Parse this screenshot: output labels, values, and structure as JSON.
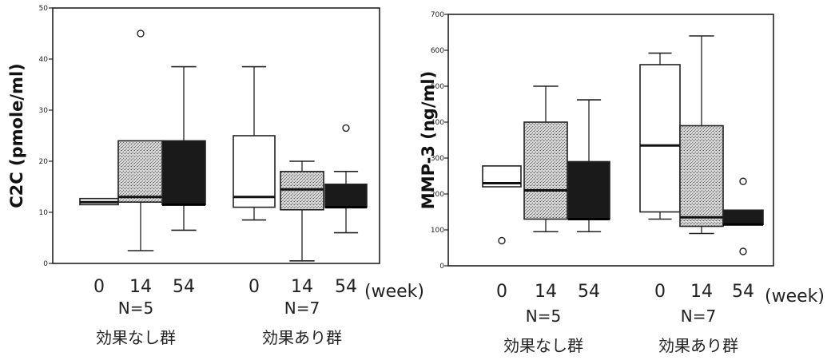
{
  "chart_data": [
    {
      "type": "box",
      "ylabel": "C2C (pmole/ml)",
      "ylim": [
        0,
        50
      ],
      "yticks": [
        0,
        10,
        20,
        30,
        40,
        50
      ],
      "x_unit": "(week)",
      "groups": [
        {
          "label_n": "N=5",
          "label_name": "効果なし群",
          "categories": [
            "0",
            "14",
            "54"
          ]
        },
        {
          "label_n": "N=7",
          "label_name": "効果あり群",
          "categories": [
            "0",
            "14",
            "54"
          ]
        }
      ],
      "boxes": [
        {
          "group": 0,
          "category": "0",
          "fill": "white",
          "min": null,
          "q1": 11.5,
          "median": 12,
          "q3": 12.7,
          "max": null,
          "outliers": []
        },
        {
          "group": 0,
          "category": "14",
          "fill": "dotted",
          "min": 2.5,
          "q1": 12,
          "median": 13,
          "q3": 24,
          "max": null,
          "outliers": [
            45
          ]
        },
        {
          "group": 0,
          "category": "54",
          "fill": "black",
          "min": 6.5,
          "q1": 11.5,
          "median": 11.5,
          "q3": 24,
          "max": 38.5,
          "outliers": []
        },
        {
          "group": 1,
          "category": "0",
          "fill": "white",
          "min": 8.5,
          "q1": 11,
          "median": 13,
          "q3": 25,
          "max": 38.5,
          "outliers": []
        },
        {
          "group": 1,
          "category": "14",
          "fill": "dotted",
          "min": 0.5,
          "q1": 10.5,
          "median": 14.5,
          "q3": 18,
          "max": 20,
          "outliers": []
        },
        {
          "group": 1,
          "category": "54",
          "fill": "black",
          "min": 6,
          "q1": 11,
          "median": 11,
          "q3": 15.5,
          "max": 18,
          "outliers": [
            26.5
          ]
        }
      ]
    },
    {
      "type": "box",
      "ylabel": "MMP-3 (ng/ml)",
      "ylim": [
        0,
        700
      ],
      "yticks": [
        0,
        100,
        200,
        300,
        400,
        500,
        600,
        700
      ],
      "x_unit": "(week)",
      "groups": [
        {
          "label_n": "N=5",
          "label_name": "効果なし群",
          "categories": [
            "0",
            "14",
            "54"
          ]
        },
        {
          "label_n": "N=7",
          "label_name": "効果あり群",
          "categories": [
            "0",
            "14",
            "54"
          ]
        }
      ],
      "boxes": [
        {
          "group": 0,
          "category": "0",
          "fill": "white",
          "min": null,
          "q1": 220,
          "median": 230,
          "q3": 278,
          "max": null,
          "outliers": [
            70
          ]
        },
        {
          "group": 0,
          "category": "14",
          "fill": "dotted",
          "min": 95,
          "q1": 130,
          "median": 210,
          "q3": 400,
          "max": 500,
          "outliers": []
        },
        {
          "group": 0,
          "category": "54",
          "fill": "black",
          "min": 95,
          "q1": 130,
          "median": 130,
          "q3": 290,
          "max": 462,
          "outliers": []
        },
        {
          "group": 1,
          "category": "0",
          "fill": "white",
          "min": 130,
          "q1": 150,
          "median": 335,
          "q3": 560,
          "max": 592,
          "outliers": []
        },
        {
          "group": 1,
          "category": "14",
          "fill": "dotted",
          "min": 90,
          "q1": 110,
          "median": 135,
          "q3": 390,
          "max": 640,
          "outliers": []
        },
        {
          "group": 1,
          "category": "54",
          "fill": "black",
          "min": null,
          "q1": 115,
          "median": 115,
          "q3": 155,
          "max": null,
          "outliers": [
            235,
            40
          ]
        }
      ]
    }
  ]
}
